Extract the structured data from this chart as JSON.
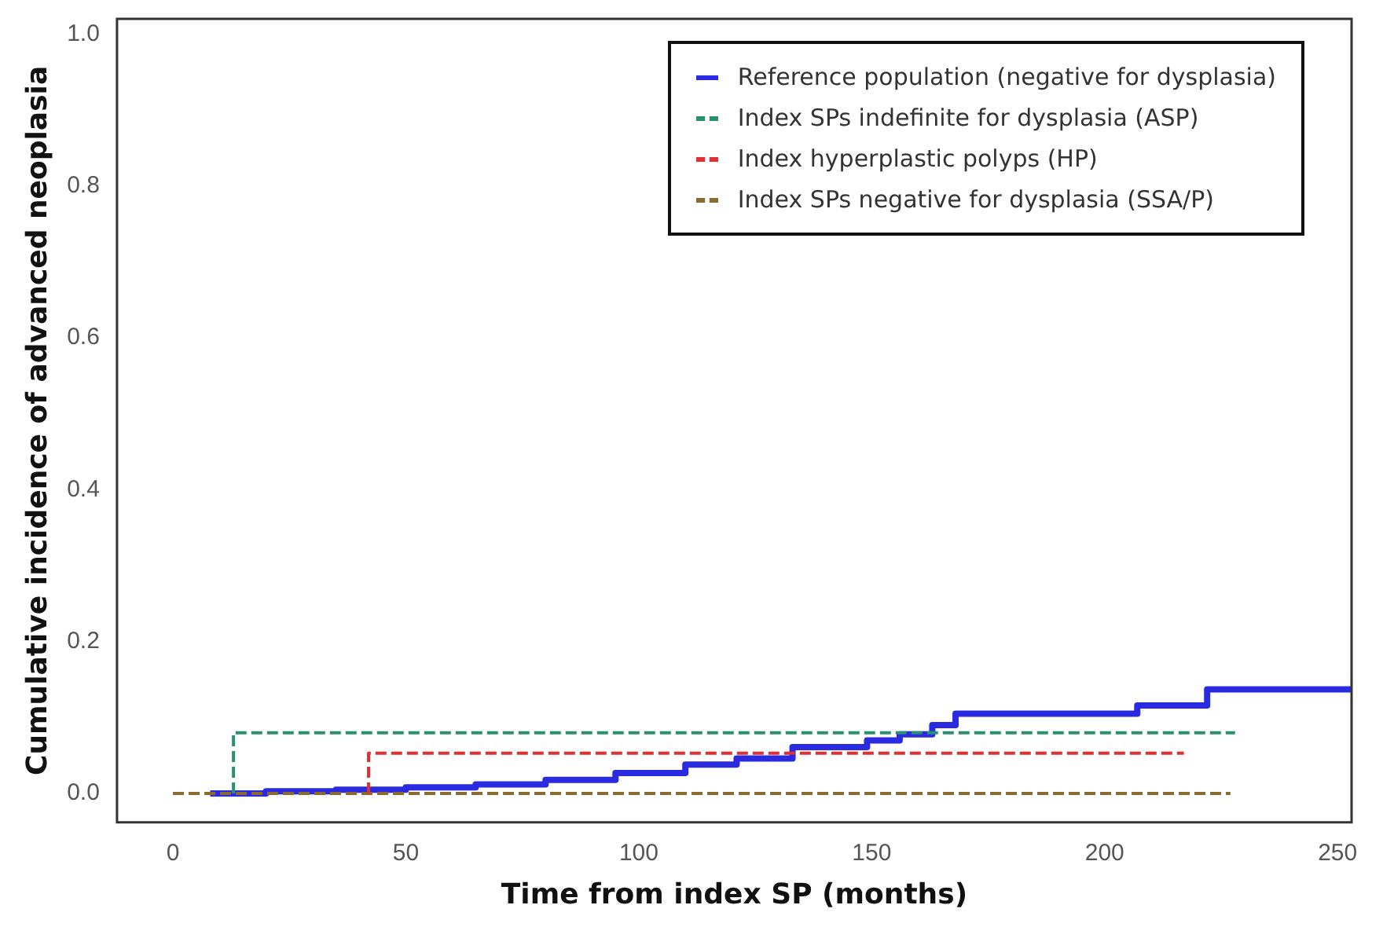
{
  "chart_data": {
    "type": "step",
    "xlabel": "Time from index SP (months)",
    "ylabel": "Cumulative incidence of advanced neoplasia",
    "xlim": [
      -12,
      253
    ],
    "xticks": [
      0,
      50,
      100,
      150,
      200,
      250
    ],
    "ylim": [
      -0.038,
      1.02
    ],
    "yticks": [
      {
        "value": 0,
        "label": "0.0"
      },
      0.2,
      0.4,
      0.6,
      0.8,
      {
        "value": 1,
        "label": "1.0"
      }
    ],
    "grid": false,
    "legend": "top right",
    "marker": "none",
    "series": [
      {
        "name": "Reference population (negative for dysplasia)",
        "color": "#2a2ae0",
        "line_style": "solid",
        "x": [
          8,
          20,
          35,
          50,
          65,
          80,
          95,
          110,
          121,
          133,
          149,
          156,
          163,
          168,
          205,
          207,
          222,
          253
        ],
        "values": [
          0,
          0.003,
          0.005,
          0.008,
          0.012,
          0.018,
          0.027,
          0.038,
          0.046,
          0.061,
          0.07,
          0.078,
          0.09,
          0.105,
          0.105,
          0.116,
          0.137,
          0.137
        ]
      },
      {
        "name": "Index SPs indefinite for dysplasia (ASP)",
        "color": "#2a9070",
        "line_style": "dashed",
        "x": [
          13,
          13,
          228
        ],
        "values": [
          0,
          0.08,
          0.08
        ]
      },
      {
        "name": "Index hyperplastic polyps (HP)",
        "color": "#e03030",
        "line_style": "dashed",
        "x": [
          42,
          42,
          217
        ],
        "values": [
          0,
          0.053,
          0.053
        ]
      },
      {
        "name": "Index SPs negative for dysplasia (SSA/P)",
        "color": "#8a6a30",
        "line_style": "dashed",
        "x": [
          0,
          227
        ],
        "values": [
          0,
          0
        ]
      }
    ]
  }
}
